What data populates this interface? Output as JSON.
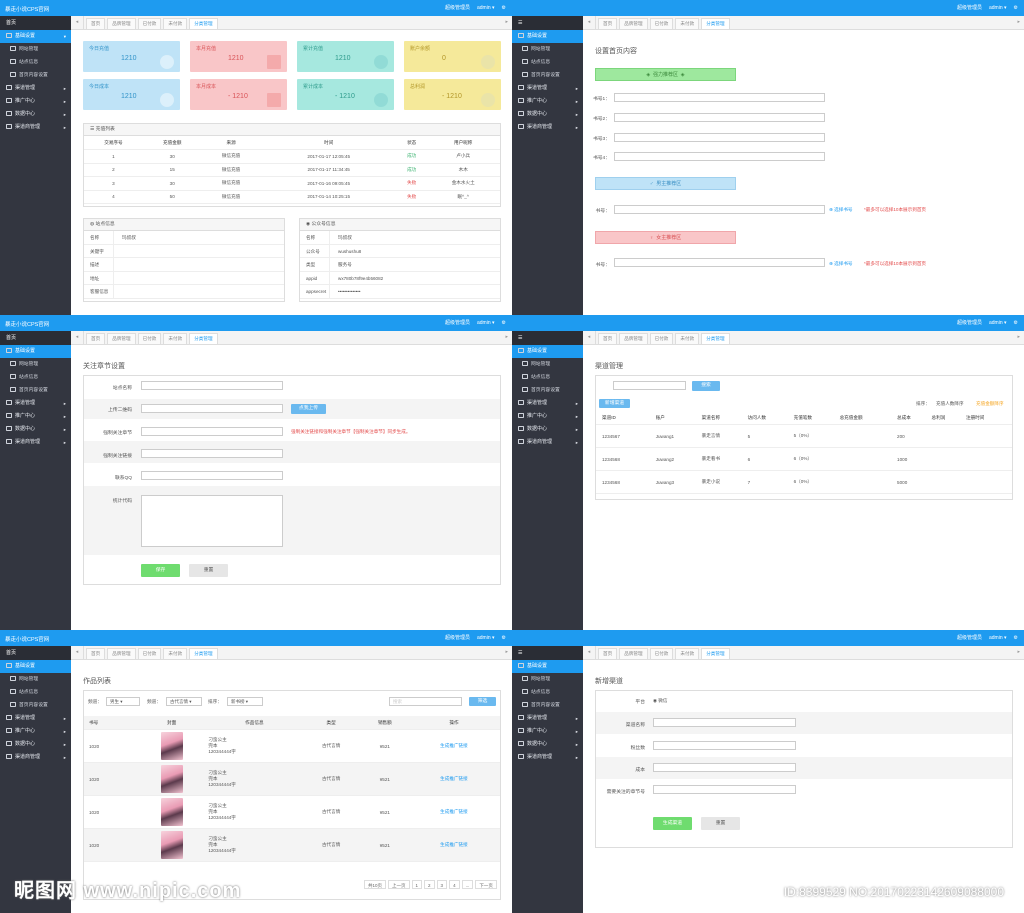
{
  "app": {
    "brand": "暴走小说CPS官网",
    "admin_role": "超级管理员",
    "admin_user": "admin"
  },
  "tabs": [
    "首页",
    "品牌管理",
    "已付款",
    "未付款",
    "分类管理"
  ],
  "sidebar": {
    "home": "首页",
    "section": "基础设置",
    "subs": [
      "网站管理",
      "站点信息",
      "首页内容设置"
    ],
    "groups": [
      "渠道管理",
      "推广中心",
      "数据中心",
      "渠道商管理"
    ]
  },
  "dashboard": {
    "stats": [
      {
        "label": "今日充值",
        "value": "1210",
        "color": "blue"
      },
      {
        "label": "本月充值",
        "value": "1210",
        "color": "red"
      },
      {
        "label": "累计充值",
        "value": "1210",
        "color": "teal"
      },
      {
        "label": "账户余额",
        "value": "0",
        "color": "yellow"
      },
      {
        "label": "今日成本",
        "value": "1210",
        "color": "blue"
      },
      {
        "label": "本月成本",
        "value": "- 1210",
        "color": "red"
      },
      {
        "label": "累计成本",
        "value": "- 1210",
        "color": "teal"
      },
      {
        "label": "总利润",
        "value": "- 1210",
        "color": "yellow"
      }
    ],
    "recharge_title": "充值列表",
    "recharge_headers": [
      "交易序号",
      "充值金额",
      "来源",
      "时间",
      "状态",
      "用户昵称"
    ],
    "recharge_rows": [
      [
        "1",
        "30",
        "微信充值",
        "2017-01-17 12:05:45",
        "成功",
        "卢小兵"
      ],
      [
        "2",
        "15",
        "微信充值",
        "2017-01-17 11:34:45",
        "成功",
        "木木"
      ],
      [
        "3",
        "30",
        "微信充值",
        "2017-01-16 09:05:45",
        "失败",
        "金木水火土"
      ],
      [
        "4",
        "50",
        "微信充值",
        "2017-01-14 10:25:15",
        "失败",
        "眠^_^"
      ]
    ],
    "site_title": "站点信息",
    "site_rows": [
      [
        "名称",
        "玛叔叔"
      ],
      [
        "关键字",
        ""
      ],
      [
        "描述",
        ""
      ],
      [
        "地址",
        ""
      ],
      [
        "客服信息",
        ""
      ]
    ],
    "mp_title": "公众号信息",
    "mp_rows": [
      [
        "名称",
        "玛叔叔"
      ],
      [
        "公众号",
        "wushushu8"
      ],
      [
        "类型",
        "服务号"
      ],
      [
        "appid",
        "wx780b78f9e4b56082"
      ],
      [
        "appsecret",
        "••••••••••••••"
      ]
    ]
  },
  "homepage": {
    "title": "设置首页内容",
    "strong": "强力推荐区",
    "book_labels": [
      "书号1：",
      "书号2：",
      "书号3：",
      "书号4："
    ],
    "male": "男主推荐区",
    "female": "女主推荐区",
    "book_no": "书号：",
    "choose": "选择书号",
    "hint": "*最多可以选择10本展示到首页"
  },
  "follow": {
    "title": "关注章节设置",
    "labels": [
      "站点名称",
      "上传二维码",
      "强制关注章节",
      "强制关注链接",
      "联系QQ",
      "统计代码"
    ],
    "upload_btn": "点我上传",
    "note": "强制关注链接和强制关注章节【强制关注章节】同步生成。",
    "save": "保存",
    "reset": "重置"
  },
  "channel": {
    "title": "渠道管理",
    "search": "搜索",
    "add": "新增渠道",
    "sort_label": "排序：",
    "sort_a": "充值人数降序",
    "sort_b": "充值金额降序",
    "headers": [
      "渠道ID",
      "账户",
      "渠道名称",
      "访问人数",
      "充值笔数",
      "总充值金额",
      "总成本",
      "总利润",
      "注册时间"
    ],
    "rows": [
      [
        "1234567",
        "Juwang1",
        "暴走言情",
        "5",
        "5（0%）",
        "",
        "200",
        "",
        ""
      ],
      [
        "1234568",
        "Juwang2",
        "暴走看书",
        "6",
        "6（0%）",
        "",
        "1000",
        "",
        ""
      ],
      [
        "1234568",
        "Juwang3",
        "暴走小说",
        "7",
        "6（0%）",
        "",
        "5000",
        "",
        ""
      ]
    ]
  },
  "works": {
    "title": "作品列表",
    "filter_channel": "频道：",
    "channel_val": "男生",
    "filter_cat": "频道：",
    "cat_val": "古代言情",
    "filter_sort": "排序：",
    "sort_val": "新书榜",
    "search_ph": "搜索",
    "filter_btn": "筛选",
    "headers": [
      "书号",
      "封面",
      "作品信息",
      "类型",
      "销售额",
      "操作"
    ],
    "rows": [
      [
        "1020",
        "刁蛮公主",
        "完本",
        "120344444字",
        "古代言情",
        "¥521",
        "生成推广链接"
      ],
      [
        "1020",
        "刁蛮公主",
        "完本",
        "120344444字",
        "古代言情",
        "¥521",
        "生成推广链接"
      ],
      [
        "1020",
        "刁蛮公主",
        "完本",
        "120344444字",
        "古代言情",
        "¥521",
        "生成推广链接"
      ],
      [
        "1020",
        "刁蛮公主",
        "完本",
        "120344444字",
        "古代言情",
        "¥521",
        "生成推广链接"
      ]
    ],
    "pager": [
      "共10页",
      "上一页",
      "1",
      "2",
      "3",
      "4",
      "...",
      "下一页"
    ]
  },
  "newchannel": {
    "title": "新增渠道",
    "platform_label": "平台",
    "platform_val": "微信",
    "labels": [
      "渠道名称",
      "粉丝数",
      "成本",
      "需要关注的章节号"
    ],
    "create": "生成渠道",
    "reset": "重置"
  },
  "watermark": {
    "left": "昵图网 www.nipic.com",
    "right": "ID:8399529 NO:20170223142609088000"
  }
}
